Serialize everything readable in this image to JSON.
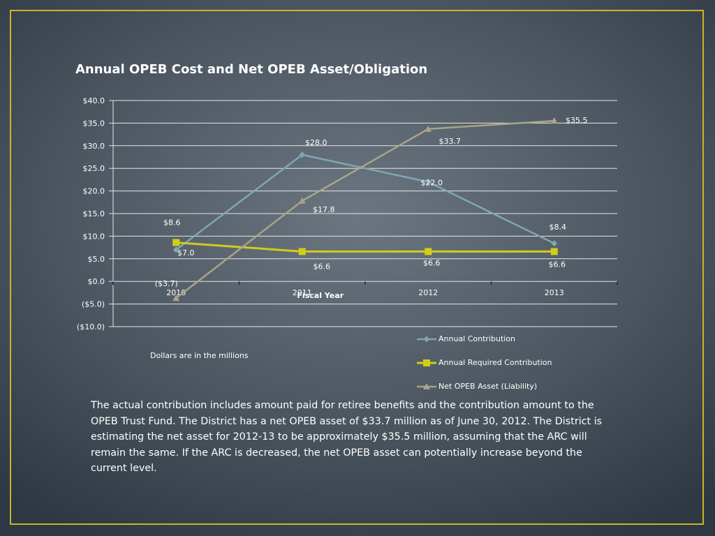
{
  "colors": {
    "frame": "#c9b528",
    "background": "#4c5660",
    "text": "#ffffff"
  },
  "note": "Dollars are in the millions",
  "caption": "The actual contribution includes amount paid for retiree benefits and the contribution amount to the OPEB Trust Fund.  The District has a net OPEB asset of $33.7 million as of June 30, 2012.  The District is estimating the net asset for 2012-13 to be approximately $35.5 million, assuming that the ARC will remain the same.  If the ARC is decreased, the net OPEB asset can potentially increase  beyond the current level.",
  "chart_data": {
    "type": "line",
    "title": "Annual OPEB Cost and Net OPEB Asset/Obligation",
    "xlabel": "Fiscal Year",
    "ylabel": "",
    "categories": [
      "2010",
      "2011",
      "2012",
      "2013"
    ],
    "ylim": [
      -10,
      40
    ],
    "y_ticks": [
      40,
      35,
      30,
      25,
      20,
      15,
      10,
      5,
      0,
      -5,
      -10
    ],
    "y_tick_labels": [
      "$40.0",
      "$35.0",
      "$30.0",
      "$25.0",
      "$20.0",
      "$15.0",
      "$10.0",
      "$5.0",
      "$0.0",
      "($5.0)",
      "($10.0)"
    ],
    "grid": true,
    "legend_position": "bottom-right",
    "series": [
      {
        "name": "Annual Contribution",
        "values": [
          7.0,
          28.0,
          22.0,
          8.4
        ],
        "labels": [
          "$7.0",
          "$28.0",
          "$22.0",
          "$8.4"
        ],
        "color": "#7fa7b2",
        "marker": "diamond"
      },
      {
        "name": "Annual Required Contribution",
        "values": [
          8.6,
          6.6,
          6.6,
          6.6
        ],
        "labels": [
          "$8.6",
          "$6.6",
          "$6.6",
          "$6.6"
        ],
        "color": "#d2cd19",
        "marker": "square"
      },
      {
        "name": "Net OPEB Asset (Liability)",
        "values": [
          -3.7,
          17.8,
          33.7,
          35.5
        ],
        "labels": [
          "($3.7)",
          "$17.8",
          "$33.7",
          "$35.5"
        ],
        "color": "#a8a48c",
        "marker": "triangle"
      }
    ]
  }
}
